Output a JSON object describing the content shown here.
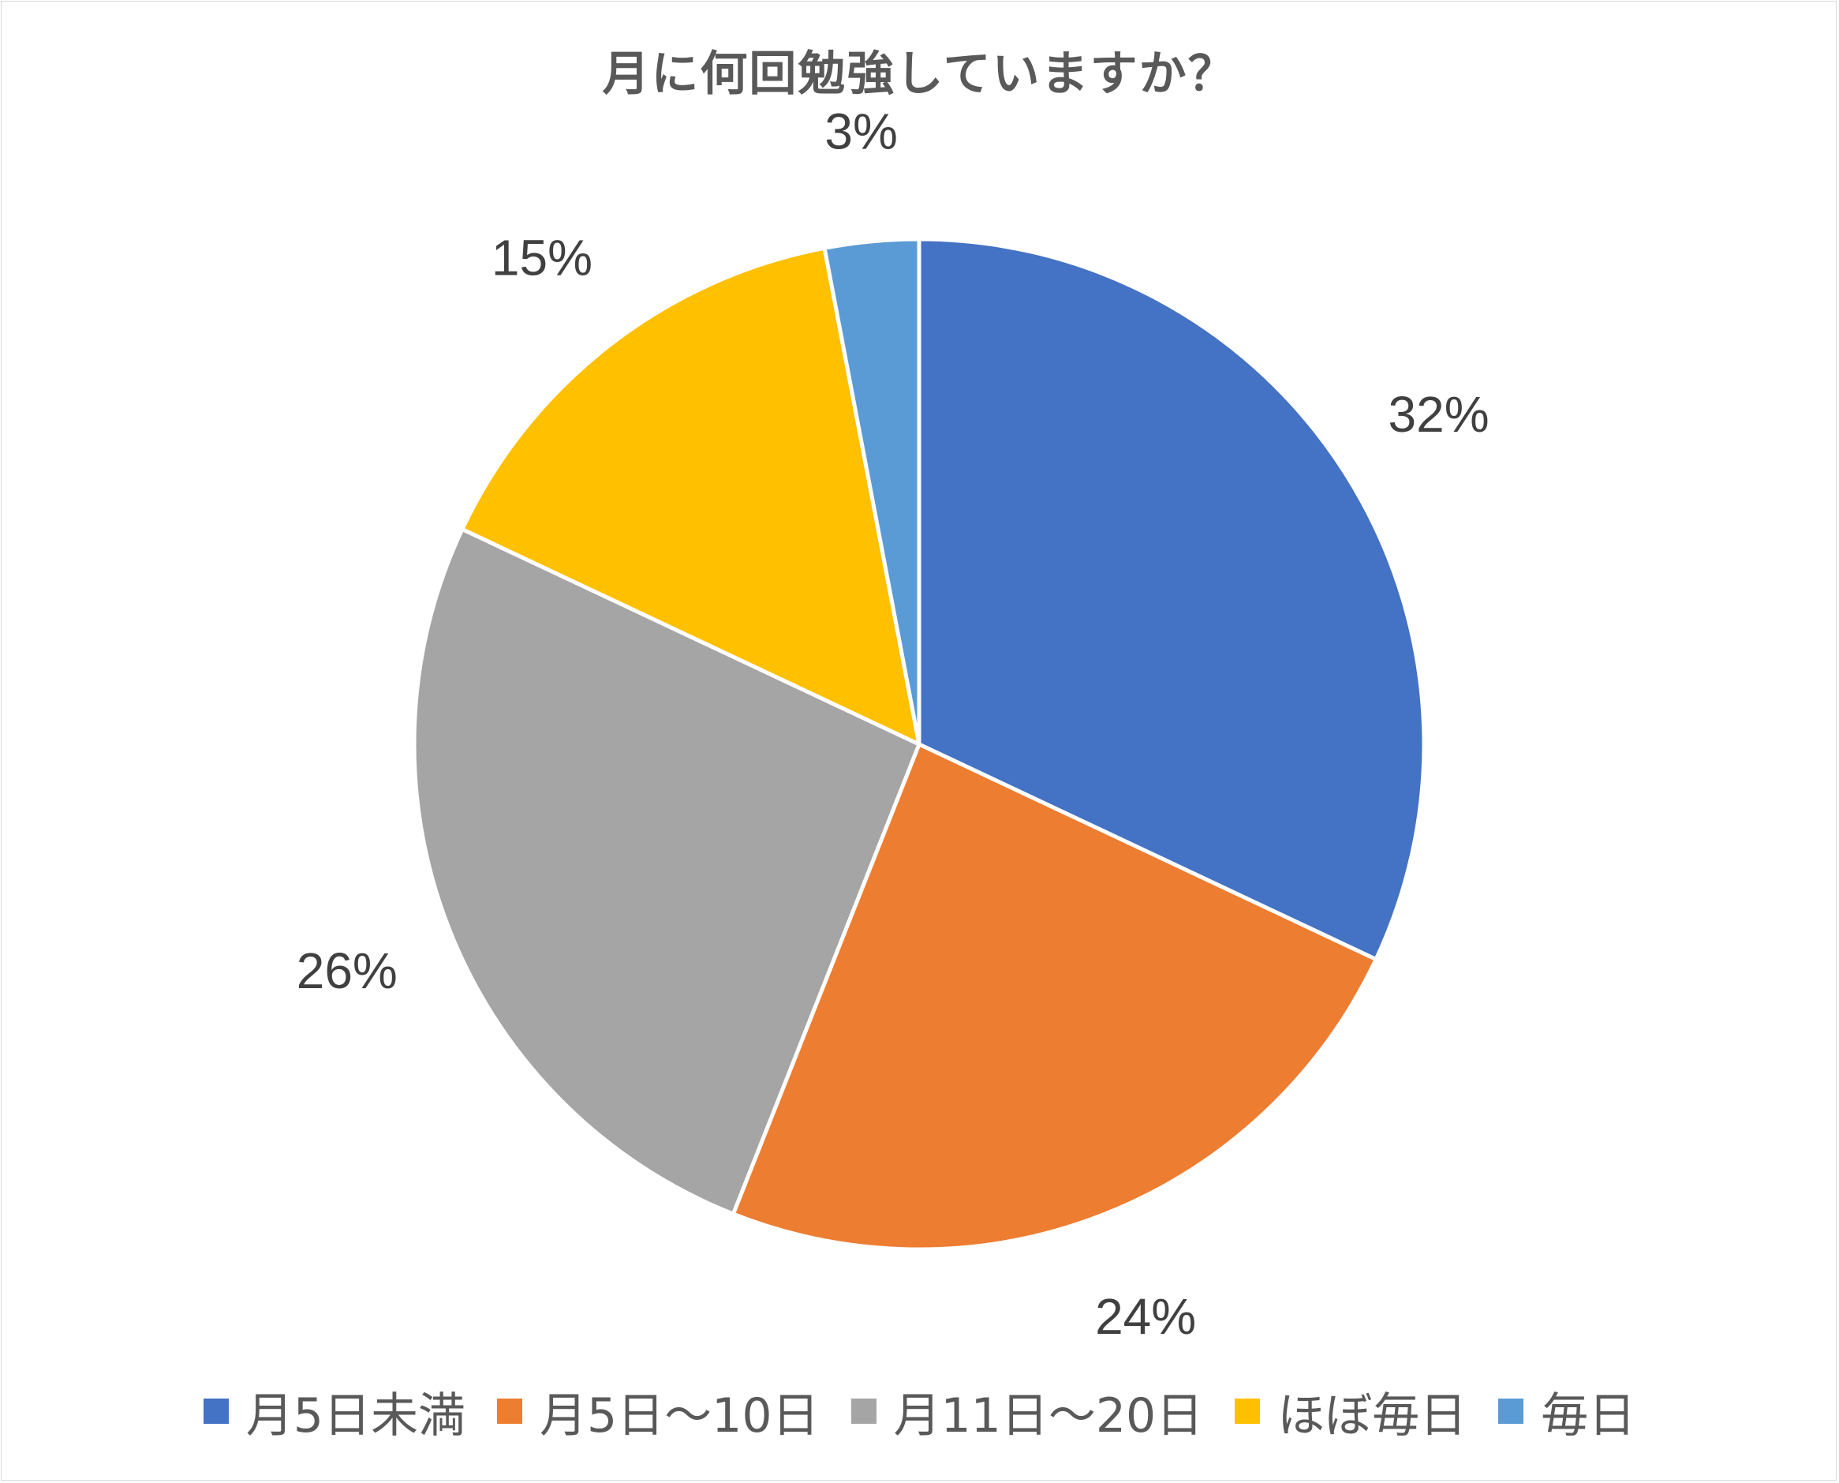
{
  "chart_data": {
    "type": "pie",
    "title": "月に何回勉強していますか？",
    "categories": [
      "月5日未満",
      "月5日～10日",
      "月11日～20日",
      "ほぼ毎日",
      "毎日"
    ],
    "values": [
      32,
      24,
      26,
      15,
      3
    ],
    "labels": [
      "32%",
      "24%",
      "26%",
      "15%",
      "3%"
    ],
    "colors": [
      "#4472c4",
      "#ed7d31",
      "#a5a5a5",
      "#ffc000",
      "#5b9bd5"
    ],
    "legend": "bottom"
  }
}
